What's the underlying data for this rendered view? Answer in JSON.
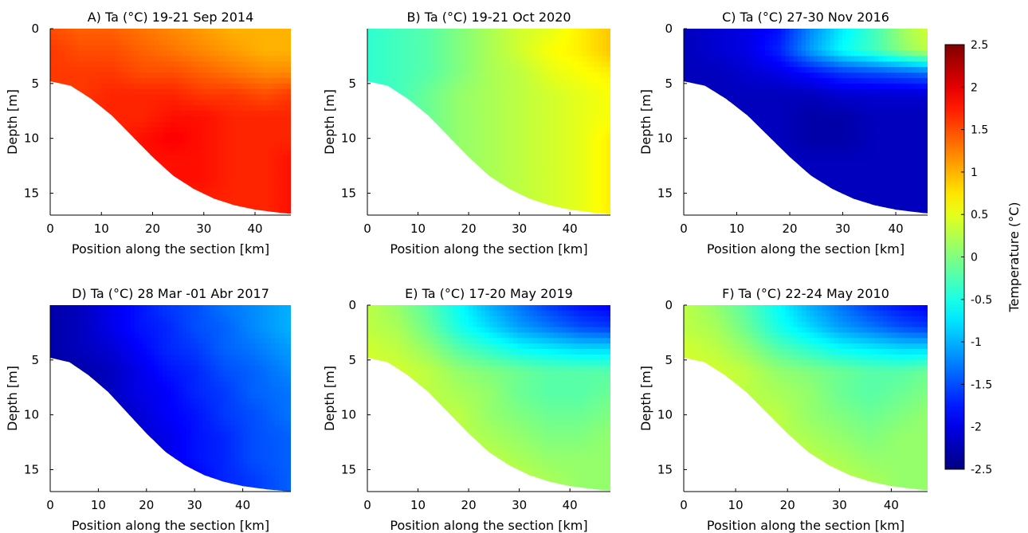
{
  "chart_data": [
    {
      "type": "heatmap",
      "title": "A) Ta (°C) 19-21 Sep 2014",
      "xlabel": "Position along the section [km]",
      "ylabel": "Depth [m]",
      "xticks": [
        "0",
        "10",
        "20",
        "30",
        "40"
      ],
      "yticks": [
        "0",
        "5",
        "10",
        "15"
      ],
      "xlim": [
        0,
        47
      ],
      "ylim": [
        0,
        17
      ],
      "x_km": [
        0,
        6,
        12,
        18,
        24,
        30,
        36,
        42,
        47
      ],
      "depth_m": [
        0,
        2,
        4,
        6,
        8,
        10,
        12,
        14,
        16
      ],
      "temperature_c": [
        [
          1.5,
          1.4,
          1.4,
          1.3,
          1.2,
          1.1,
          1.0,
          1.0,
          1.0
        ],
        [
          1.6,
          1.5,
          1.5,
          1.4,
          1.3,
          1.2,
          1.1,
          1.0,
          1.0
        ],
        [
          1.6,
          1.6,
          1.6,
          1.5,
          1.5,
          1.4,
          1.3,
          1.2,
          1.2
        ],
        [
          1.6,
          1.6,
          1.7,
          1.7,
          1.7,
          1.6,
          1.6,
          1.5,
          1.6
        ],
        [
          1.6,
          1.7,
          1.7,
          1.7,
          1.8,
          1.8,
          1.7,
          1.7,
          1.7
        ],
        [
          1.6,
          1.7,
          1.7,
          1.8,
          1.9,
          1.8,
          1.7,
          1.7,
          1.7
        ],
        [
          1.6,
          1.7,
          1.7,
          1.8,
          1.8,
          1.8,
          1.7,
          1.7,
          1.8
        ],
        [
          1.6,
          1.7,
          1.7,
          1.7,
          1.8,
          1.8,
          1.7,
          1.7,
          1.8
        ],
        [
          1.6,
          1.7,
          1.7,
          1.7,
          1.7,
          1.7,
          1.7,
          1.7,
          1.8
        ]
      ]
    },
    {
      "type": "heatmap",
      "title": "B) Ta (°C) 19-21 Oct 2020",
      "xlabel": "Position along the section [km]",
      "ylabel": "Depth [m]",
      "xticks": [
        "0",
        "10",
        "20",
        "30",
        "40"
      ],
      "yticks": [
        "5",
        "10",
        "15"
      ],
      "xlim": [
        0,
        48
      ],
      "ylim": [
        0,
        17
      ],
      "x_km": [
        0,
        6,
        12,
        18,
        24,
        30,
        36,
        42,
        48
      ],
      "depth_m": [
        0,
        2,
        4,
        6,
        8,
        10,
        12,
        14,
        16
      ],
      "temperature_c": [
        [
          -0.4,
          -0.3,
          -0.2,
          0.0,
          0.2,
          0.4,
          0.5,
          0.7,
          0.9
        ],
        [
          -0.4,
          -0.3,
          -0.2,
          0.0,
          0.2,
          0.4,
          0.6,
          0.7,
          0.9
        ],
        [
          -0.4,
          -0.3,
          -0.2,
          0.0,
          0.2,
          0.3,
          0.5,
          0.6,
          0.7
        ],
        [
          -0.4,
          -0.3,
          -0.1,
          0.1,
          0.2,
          0.3,
          0.4,
          0.5,
          0.6
        ],
        [
          -0.4,
          -0.3,
          -0.1,
          0.1,
          0.2,
          0.3,
          0.4,
          0.5,
          0.6
        ],
        [
          -0.4,
          -0.3,
          -0.1,
          0.1,
          0.2,
          0.3,
          0.4,
          0.5,
          0.7
        ],
        [
          -0.4,
          -0.3,
          -0.1,
          0.1,
          0.2,
          0.3,
          0.4,
          0.5,
          0.7
        ],
        [
          -0.4,
          -0.3,
          -0.1,
          0.1,
          0.2,
          0.3,
          0.4,
          0.5,
          0.7
        ],
        [
          -0.4,
          -0.3,
          -0.1,
          0.1,
          0.2,
          0.3,
          0.4,
          0.5,
          0.7
        ]
      ]
    },
    {
      "type": "heatmap",
      "title": "C) Ta (°C) 27-30 Nov 2016",
      "xlabel": "Position along the section [km]",
      "ylabel": "Depth [m]",
      "xticks": [
        "0",
        "10",
        "20",
        "30",
        "40"
      ],
      "yticks": [
        "0",
        "5",
        "10",
        "15"
      ],
      "xlim": [
        0,
        46
      ],
      "ylim": [
        0,
        17
      ],
      "x_km": [
        0,
        6,
        12,
        18,
        24,
        30,
        36,
        42,
        46
      ],
      "depth_m": [
        0,
        2,
        4,
        6,
        8,
        10,
        12,
        14,
        16
      ],
      "temperature_c": [
        [
          -2.2,
          -2.1,
          -2.0,
          -1.8,
          -1.2,
          -0.7,
          -0.3,
          0.2,
          0.4
        ],
        [
          -2.2,
          -2.1,
          -2.0,
          -1.7,
          -1.1,
          -0.6,
          -0.3,
          0.1,
          0.3
        ],
        [
          -2.2,
          -2.2,
          -2.1,
          -2.0,
          -1.8,
          -1.6,
          -1.5,
          -1.4,
          -1.3
        ],
        [
          -2.2,
          -2.2,
          -2.2,
          -2.2,
          -2.2,
          -2.1,
          -2.1,
          -2.1,
          -2.1
        ],
        [
          -2.2,
          -2.2,
          -2.2,
          -2.2,
          -2.3,
          -2.3,
          -2.2,
          -2.2,
          -2.2
        ],
        [
          -2.2,
          -2.2,
          -2.2,
          -2.2,
          -2.3,
          -2.3,
          -2.2,
          -2.2,
          -2.2
        ],
        [
          -2.2,
          -2.2,
          -2.2,
          -2.2,
          -2.2,
          -2.2,
          -2.2,
          -2.2,
          -2.2
        ],
        [
          -2.2,
          -2.2,
          -2.2,
          -2.2,
          -2.2,
          -2.2,
          -2.2,
          -2.2,
          -2.2
        ],
        [
          -2.2,
          -2.2,
          -2.2,
          -2.2,
          -2.2,
          -2.2,
          -2.2,
          -2.2,
          -2.2
        ]
      ]
    },
    {
      "type": "heatmap",
      "title": "D) Ta (°C) 28 Mar -01 Abr 2017",
      "xlabel": "Position along the section [km]",
      "ylabel": "Depth [m]",
      "xticks": [
        "0",
        "10",
        "20",
        "30",
        "40"
      ],
      "yticks": [
        "5",
        "10",
        "15"
      ],
      "xlim": [
        0,
        50
      ],
      "ylim": [
        0,
        17
      ],
      "x_km": [
        0,
        6,
        12,
        18,
        24,
        30,
        36,
        42,
        50
      ],
      "depth_m": [
        0,
        2,
        4,
        6,
        8,
        10,
        12,
        14,
        16
      ],
      "temperature_c": [
        [
          -2.3,
          -2.2,
          -2.0,
          -1.8,
          -1.6,
          -1.5,
          -1.3,
          -1.2,
          -1.0
        ],
        [
          -2.3,
          -2.2,
          -2.0,
          -1.8,
          -1.7,
          -1.5,
          -1.4,
          -1.2,
          -1.0
        ],
        [
          -2.3,
          -2.2,
          -2.1,
          -1.9,
          -1.7,
          -1.6,
          -1.4,
          -1.3,
          -1.1
        ],
        [
          -2.4,
          -2.3,
          -2.2,
          -2.0,
          -1.8,
          -1.7,
          -1.5,
          -1.4,
          -1.2
        ],
        [
          -2.4,
          -2.4,
          -2.2,
          -2.0,
          -1.9,
          -1.7,
          -1.6,
          -1.4,
          -1.3
        ],
        [
          -2.4,
          -2.4,
          -2.3,
          -2.1,
          -1.9,
          -1.8,
          -1.6,
          -1.5,
          -1.3
        ],
        [
          -2.4,
          -2.4,
          -2.3,
          -2.1,
          -2.0,
          -1.8,
          -1.7,
          -1.5,
          -1.4
        ],
        [
          -2.4,
          -2.4,
          -2.3,
          -2.2,
          -2.0,
          -1.8,
          -1.7,
          -1.5,
          -1.4
        ],
        [
          -2.4,
          -2.4,
          -2.3,
          -2.2,
          -2.0,
          -1.9,
          -1.7,
          -1.6,
          -1.4
        ]
      ]
    },
    {
      "type": "heatmap",
      "title": "E) Ta (°C) 17-20 May 2019",
      "xlabel": "Position along the section [km]",
      "ylabel": "Depth [m]",
      "xticks": [
        "0",
        "10",
        "20",
        "30",
        "40"
      ],
      "yticks": [
        "0",
        "5",
        "10",
        "15"
      ],
      "xlim": [
        0,
        48
      ],
      "ylim": [
        0,
        17
      ],
      "x_km": [
        0,
        6,
        12,
        18,
        24,
        30,
        36,
        42,
        48
      ],
      "depth_m": [
        0,
        2,
        4,
        6,
        8,
        10,
        12,
        14,
        16
      ],
      "temperature_c": [
        [
          0.3,
          0.1,
          -0.2,
          -0.6,
          -1.0,
          -1.3,
          -1.6,
          -1.8,
          -1.9
        ],
        [
          0.3,
          0.2,
          -0.1,
          -0.5,
          -0.8,
          -1.1,
          -1.3,
          -1.5,
          -1.6
        ],
        [
          0.4,
          0.3,
          0.1,
          -0.2,
          -0.4,
          -0.6,
          -0.7,
          -0.8,
          -0.8
        ],
        [
          0.4,
          0.4,
          0.3,
          0.1,
          0.0,
          -0.1,
          -0.2,
          -0.2,
          -0.2
        ],
        [
          0.4,
          0.4,
          0.3,
          0.2,
          0.1,
          -0.1,
          -0.2,
          -0.2,
          -0.1
        ],
        [
          0.4,
          0.4,
          0.3,
          0.3,
          0.1,
          0.0,
          -0.1,
          -0.1,
          0.0
        ],
        [
          0.4,
          0.4,
          0.4,
          0.3,
          0.2,
          0.1,
          0.0,
          0.0,
          0.1
        ],
        [
          0.4,
          0.4,
          0.4,
          0.4,
          0.3,
          0.2,
          0.1,
          0.1,
          0.1
        ],
        [
          0.4,
          0.4,
          0.4,
          0.4,
          0.4,
          0.3,
          0.2,
          0.1,
          0.1
        ]
      ]
    },
    {
      "type": "heatmap",
      "title": "F) Ta (°C) 22-24 May 2010",
      "xlabel": "Position along the section [km]",
      "ylabel": "Depth [m]",
      "xticks": [
        "0",
        "10",
        "20",
        "30",
        "40"
      ],
      "yticks": [
        "0",
        "5",
        "10",
        "15"
      ],
      "xlim": [
        0,
        47
      ],
      "ylim": [
        0,
        17
      ],
      "x_km": [
        0,
        6,
        12,
        18,
        24,
        30,
        36,
        42,
        47
      ],
      "depth_m": [
        0,
        2,
        4,
        6,
        8,
        10,
        12,
        14,
        16
      ],
      "temperature_c": [
        [
          0.3,
          0.1,
          -0.2,
          -0.6,
          -1.0,
          -1.3,
          -1.6,
          -1.8,
          -1.9
        ],
        [
          0.3,
          0.2,
          -0.1,
          -0.5,
          -0.8,
          -1.1,
          -1.3,
          -1.5,
          -1.6
        ],
        [
          0.4,
          0.3,
          0.1,
          -0.2,
          -0.4,
          -0.6,
          -0.7,
          -0.8,
          -0.8
        ],
        [
          0.4,
          0.4,
          0.3,
          0.1,
          0.0,
          -0.1,
          -0.2,
          -0.2,
          -0.1
        ],
        [
          0.4,
          0.4,
          0.3,
          0.2,
          0.1,
          -0.1,
          -0.2,
          -0.1,
          0.0
        ],
        [
          0.4,
          0.4,
          0.3,
          0.3,
          0.1,
          0.0,
          -0.1,
          0.0,
          0.1
        ],
        [
          0.4,
          0.4,
          0.4,
          0.3,
          0.2,
          0.1,
          0.0,
          0.1,
          0.1
        ],
        [
          0.4,
          0.4,
          0.4,
          0.4,
          0.3,
          0.2,
          0.1,
          0.1,
          0.1
        ],
        [
          0.4,
          0.4,
          0.4,
          0.4,
          0.4,
          0.3,
          0.2,
          0.1,
          0.1
        ]
      ]
    }
  ],
  "colorbar": {
    "label": "Temperature (°C)",
    "ticks": [
      "2.5",
      "2",
      "1.5",
      "1",
      "0.5",
      "0",
      "-0.5",
      "-1",
      "-1.5",
      "-2",
      "-2.5"
    ],
    "range": [
      -2.5,
      2.5
    ],
    "colormap": "jet"
  }
}
